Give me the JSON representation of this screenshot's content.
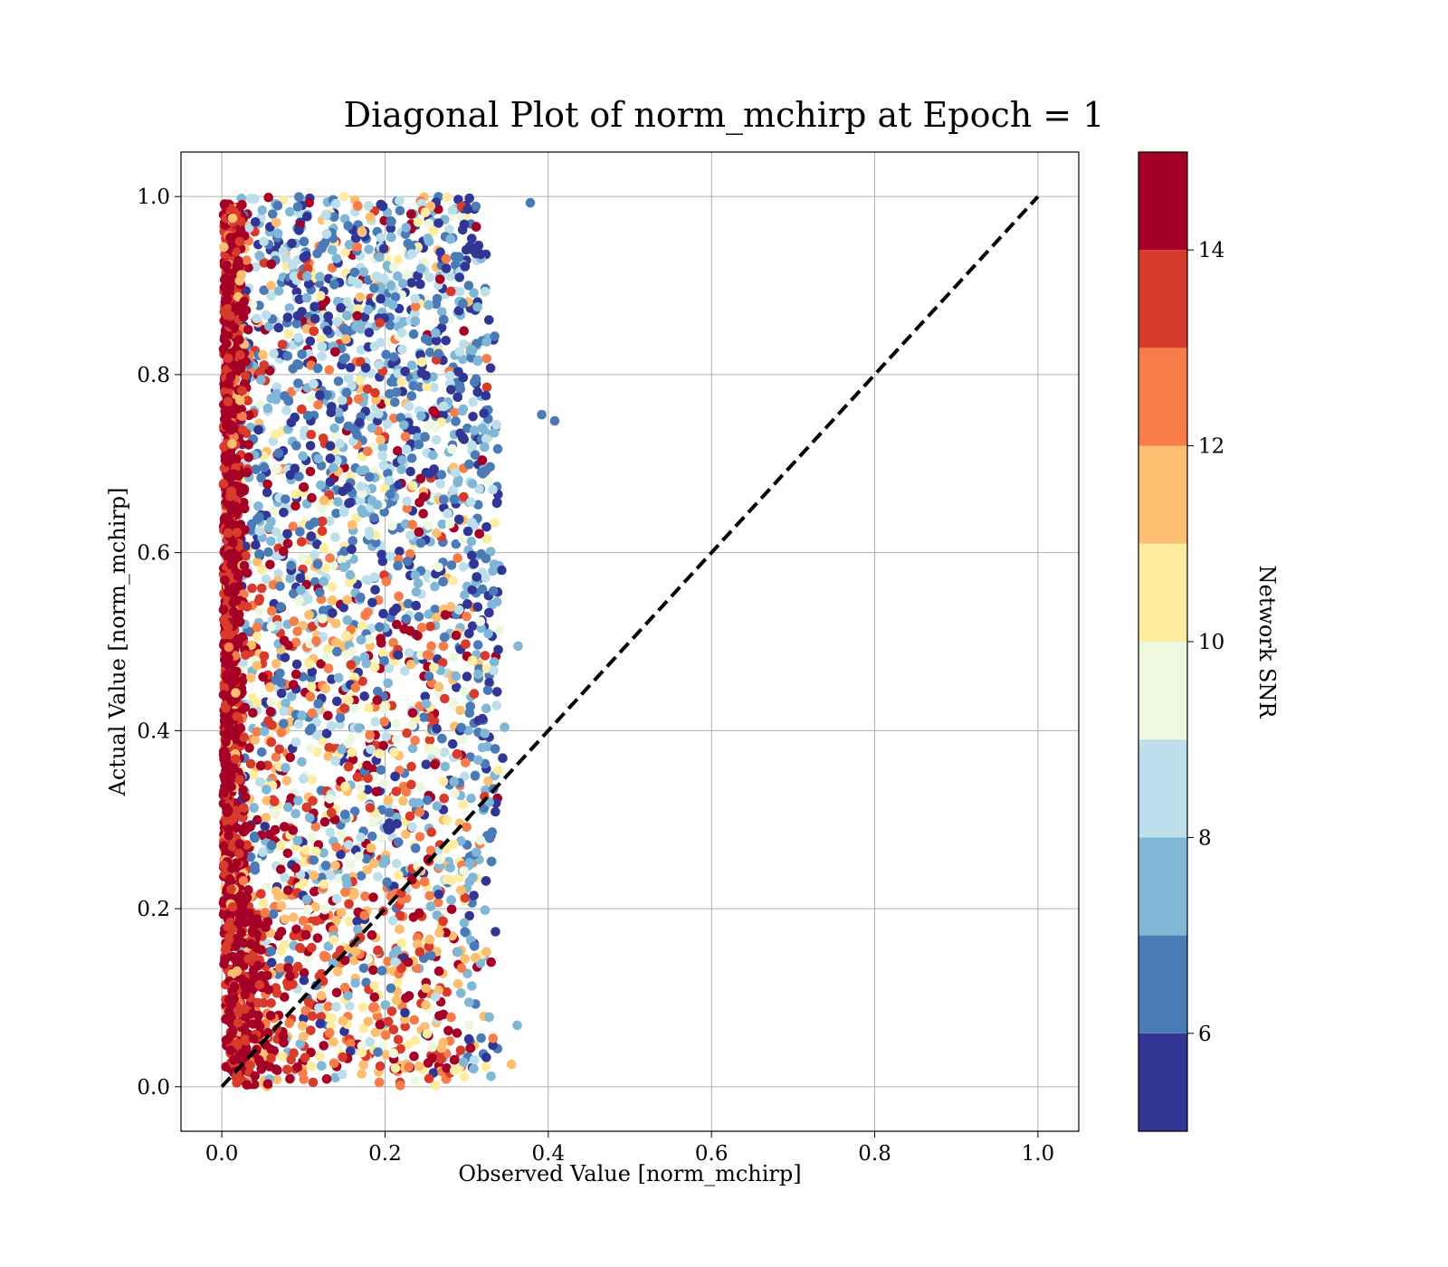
{
  "chart_data": {
    "type": "scatter",
    "title": "Diagonal Plot of norm_mchirp at Epoch = 1",
    "xlabel": "Observed Value [norm_mchirp]",
    "ylabel": "Actual Value [norm_mchirp]",
    "xlim": [
      -0.05,
      1.05
    ],
    "ylim": [
      -0.05,
      1.05
    ],
    "xticks": [
      "0.0",
      "0.2",
      "0.4",
      "0.6",
      "0.8",
      "1.0"
    ],
    "yticks": [
      "0.0",
      "0.2",
      "0.4",
      "0.6",
      "0.8",
      "1.0"
    ],
    "grid": true,
    "reference_line": {
      "style": "dashed",
      "color": "#000000",
      "x": [
        0,
        1
      ],
      "y": [
        0,
        1
      ]
    },
    "colorbar": {
      "label": "Network SNR",
      "range": [
        5,
        15
      ],
      "ticks": [
        "6",
        "8",
        "10",
        "12",
        "14"
      ],
      "bins": [
        {
          "from": 5,
          "to": 6,
          "color": "#313695"
        },
        {
          "from": 6,
          "to": 7,
          "color": "#4a7bb7"
        },
        {
          "from": 7,
          "to": 8,
          "color": "#80b6d6"
        },
        {
          "from": 8,
          "to": 9,
          "color": "#bddfeb"
        },
        {
          "from": 9,
          "to": 10,
          "color": "#eef8df"
        },
        {
          "from": 10,
          "to": 11,
          "color": "#feeda1"
        },
        {
          "from": 11,
          "to": 12,
          "color": "#fdbf6f"
        },
        {
          "from": 12,
          "to": 13,
          "color": "#f67d4a"
        },
        {
          "from": 13,
          "to": 14,
          "color": "#d83a2b"
        },
        {
          "from": 14,
          "to": 15,
          "color": "#a50026"
        }
      ]
    },
    "point_cloud": {
      "description_counts": {
        "high_snr_band": 1400,
        "main_cloud": 3400
      },
      "high_snr_band": {
        "x_range": [
          0.0,
          0.06
        ],
        "y_range": [
          0.0,
          1.0
        ],
        "snr_range": [
          13.5,
          15
        ]
      },
      "main_cloud": {
        "x_range": [
          0.02,
          0.36
        ],
        "y_range": [
          0.0,
          1.0
        ]
      },
      "outliers": [
        {
          "x": 0.392,
          "y": 0.755,
          "snr": 6.5
        },
        {
          "x": 0.408,
          "y": 0.748,
          "snr": 6.5
        },
        {
          "x": 0.378,
          "y": 0.993,
          "snr": 6.5
        },
        {
          "x": 0.363,
          "y": 0.495,
          "snr": 7.5
        },
        {
          "x": 0.362,
          "y": 0.069,
          "snr": 7.5
        },
        {
          "x": 0.355,
          "y": 0.025,
          "snr": 11.5
        }
      ]
    }
  }
}
